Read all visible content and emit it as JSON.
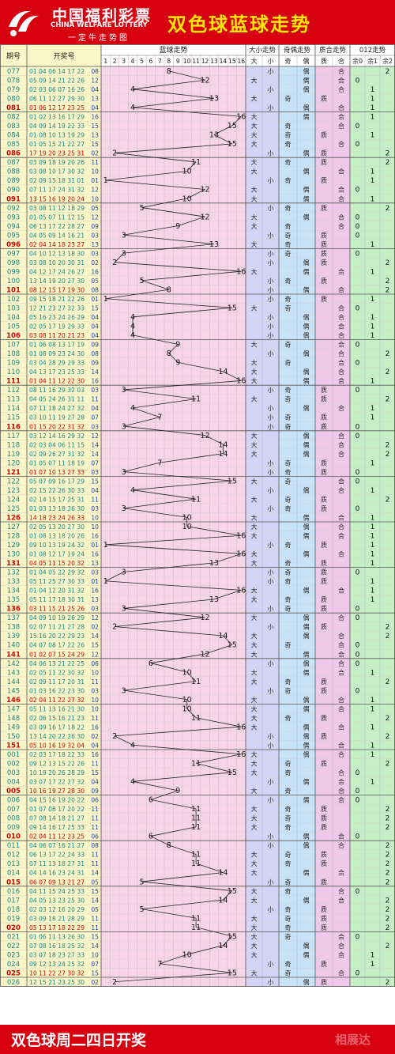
{
  "header": {
    "logo_cn": "中国福利彩票",
    "logo_en": "CHINA WELFARE LOTTERY",
    "logo_sub": "一定牛走势图",
    "title": "双色球蓝球走势"
  },
  "footer": {
    "text": "双色球周二四日开奖",
    "watermark": "相展达"
  },
  "columns": {
    "issue": "期号",
    "numbers": "开奖号",
    "blue": "蓝球走势",
    "size": "大小走势",
    "parity": "奇偶走势",
    "prime": "质合走势",
    "mod": "012走势"
  },
  "sub_labels": {
    "big": "大",
    "small": "小",
    "odd": "奇",
    "even": "偶",
    "prime": "质",
    "composite": "合",
    "r0": "余0",
    "r1": "余1",
    "r2": "余2"
  },
  "colors": {
    "header_red": "#d7000f",
    "title_yellow": "#ffe800",
    "issue_teal": "#0b8a8a",
    "issue_red": "#d40000",
    "trend_pink": "#f6d6e6",
    "size_blue": "#d6d4f4",
    "parity_blue": "#c8e2f8",
    "prime_pink": "#efc8ea",
    "mod_green": "#c6efc6"
  },
  "chart_data": {
    "type": "table",
    "title": "双色球蓝球走势",
    "blue_axis": [
      1,
      2,
      3,
      4,
      5,
      6,
      7,
      8,
      9,
      10,
      11,
      12,
      13,
      14,
      15,
      16
    ],
    "rows": [
      {
        "issue": "077",
        "reds": "01 04 06 14 17 22",
        "blue": 8
      },
      {
        "issue": "078",
        "reds": "05 09 14 21 22 26",
        "blue": 12
      },
      {
        "issue": "079",
        "reds": "02 03 06 07 16 26",
        "blue": 4
      },
      {
        "issue": "080",
        "reds": "06 11 12 27 29 30",
        "blue": 13
      },
      {
        "issue": "081",
        "reds": "01 06 12 17 23 25",
        "blue": 4
      },
      {
        "issue": "082",
        "reds": "01 02 13 16 17 29",
        "blue": 16
      },
      {
        "issue": "083",
        "reds": "04 09 14 19 22 33",
        "blue": 15
      },
      {
        "issue": "084",
        "reds": "01 08 10 13 19 29",
        "blue": 13
      },
      {
        "issue": "085",
        "reds": "01 05 15 21 22 27",
        "blue": 15
      },
      {
        "issue": "086",
        "reds": "17 19 20 23 25 31",
        "blue": 2
      },
      {
        "issue": "087",
        "reds": "03 09 18 19 20 26",
        "blue": 11
      },
      {
        "issue": "088",
        "reds": "03 08 10 17 30 32",
        "blue": 10
      },
      {
        "issue": "089",
        "reds": "02 09 15 18 31 01",
        "blue": 1
      },
      {
        "issue": "090",
        "reds": "07 11 17 24 31 32",
        "blue": 12
      },
      {
        "issue": "091",
        "reds": "13 15 16 19 20 24",
        "blue": 10
      },
      {
        "issue": "092",
        "reds": "03 08 11 12 18 29",
        "blue": 5
      },
      {
        "issue": "093",
        "reds": "01 05 07 11 12 15",
        "blue": 12
      },
      {
        "issue": "094",
        "reds": "06 13 17 22 28 27",
        "blue": 9
      },
      {
        "issue": "095",
        "reds": "04 05 09 14 16 21",
        "blue": 3
      },
      {
        "issue": "096",
        "reds": "02 04 14 18 23 27",
        "blue": 13
      },
      {
        "issue": "097",
        "reds": "04 10 12 13 18 30",
        "blue": 3
      },
      {
        "issue": "098",
        "reds": "03 08 10 20 30 31",
        "blue": 2
      },
      {
        "issue": "099",
        "reds": "04 12 17 24 26 27",
        "blue": 16
      },
      {
        "issue": "100",
        "reds": "13 14 19 20 27 30",
        "blue": 5
      },
      {
        "issue": "101",
        "reds": "08 12 15 17 19 30",
        "blue": 8
      },
      {
        "issue": "102",
        "reds": "09 15 18 21 22 26",
        "blue": 1
      },
      {
        "issue": "103",
        "reds": "12 21 23 27 32 33",
        "blue": 15
      },
      {
        "issue": "104",
        "reds": "05 16 23 24 26 29",
        "blue": 4
      },
      {
        "issue": "105",
        "reds": "02 05 17 19 29 33",
        "blue": 4
      },
      {
        "issue": "106",
        "reds": "03 08 11 20 21 23",
        "blue": 4
      },
      {
        "issue": "107",
        "reds": "01 06 08 13 17 19",
        "blue": 9
      },
      {
        "issue": "108",
        "reds": "01 08 09 23 24 30",
        "blue": 8
      },
      {
        "issue": "109",
        "reds": "03 04 28 29 29 33",
        "blue": 9
      },
      {
        "issue": "110",
        "reds": "04 13 17 23 25 33",
        "blue": 14
      },
      {
        "issue": "111",
        "reds": "01 04 11 12 22 30",
        "blue": 16
      },
      {
        "issue": "112",
        "reds": "08 11 16 29 32 03",
        "blue": 3
      },
      {
        "issue": "113",
        "reds": "04 05 24 26 31 11",
        "blue": 11
      },
      {
        "issue": "114",
        "reds": "07 11 18 24 27 32",
        "blue": 4
      },
      {
        "issue": "115",
        "reds": "03 10 11 19 27 28",
        "blue": 7
      },
      {
        "issue": "116",
        "reds": "01 15 20 22 31 32",
        "blue": 3
      },
      {
        "issue": "117",
        "reds": "03 12 14 16 29 32",
        "blue": 12
      },
      {
        "issue": "118",
        "reds": "02 03 04 06 11 15",
        "blue": 14
      },
      {
        "issue": "119",
        "reds": "02 09 26 27 31 32",
        "blue": 14
      },
      {
        "issue": "120",
        "reds": "01 05 07 11 18 19",
        "blue": 7
      },
      {
        "issue": "121",
        "reds": "01 07 10 13 27 33",
        "blue": 3
      },
      {
        "issue": "122",
        "reds": "05 07 09 16 17 29",
        "blue": 15
      },
      {
        "issue": "123",
        "reds": "02 15 22 26 30 33",
        "blue": 4
      },
      {
        "issue": "124",
        "reds": "02 14 15 17 25 31",
        "blue": 11
      },
      {
        "issue": "125",
        "reds": "01 03 13 18 26 30",
        "blue": 3
      },
      {
        "issue": "126",
        "reds": "14 18 23 24 26 33",
        "blue": 10
      },
      {
        "issue": "127",
        "reds": "02 05 13 20 27 30",
        "blue": 10
      },
      {
        "issue": "128",
        "reds": "01 08 13 18 20 26",
        "blue": 16
      },
      {
        "issue": "129",
        "reds": "09 10 13 19 24 32",
        "blue": 1
      },
      {
        "issue": "130",
        "reds": "01 08 12 17 19 24",
        "blue": 16
      },
      {
        "issue": "131",
        "reds": "04 05 11 15 20 32",
        "blue": 13
      },
      {
        "issue": "132",
        "reds": "01 04 05 22 29 32",
        "blue": 3
      },
      {
        "issue": "133",
        "reds": "05 11 25 27 30 33",
        "blue": 1
      },
      {
        "issue": "134",
        "reds": "01 04 12 20 31 32",
        "blue": 16
      },
      {
        "issue": "135",
        "reds": "05 11 17 18 30 31",
        "blue": 13
      },
      {
        "issue": "136",
        "reds": "03 11 15 21 25 26",
        "blue": 3
      },
      {
        "issue": "137",
        "reds": "04 09 10 19 26 29",
        "blue": 12
      },
      {
        "issue": "138",
        "reds": "02 07 11 21 27 28",
        "blue": 2
      },
      {
        "issue": "139",
        "reds": "15 16 20 22 29 23",
        "blue": 14
      },
      {
        "issue": "140",
        "reds": "04 07 08 17 22 26",
        "blue": 15
      },
      {
        "issue": "141",
        "reds": "01 02 07 15 24 29",
        "blue": 12
      },
      {
        "issue": "142",
        "reds": "04 06 13 21 22 25",
        "blue": 6
      },
      {
        "issue": "143",
        "reds": "02 05 11 22 30 32",
        "blue": 10
      },
      {
        "issue": "144",
        "reds": "02 09 11 17 20 31",
        "blue": 11
      },
      {
        "issue": "145",
        "reds": "01 03 16 22 23 30",
        "blue": 3
      },
      {
        "issue": "146",
        "reds": "02 04 11 22 27 32",
        "blue": 10
      },
      {
        "issue": "147",
        "reds": "05 11 13 16 21 30",
        "blue": 10
      },
      {
        "issue": "148",
        "reds": "02 06 15 16 21 23",
        "blue": 11
      },
      {
        "issue": "149",
        "reds": "03 09 16 17 18 22",
        "blue": 16
      },
      {
        "issue": "150",
        "reds": "13 14 20 22 26 30",
        "blue": 2
      },
      {
        "issue": "151",
        "reds": "05 10 16 19 32 04",
        "blue": 4
      },
      {
        "issue": "001",
        "reds": "02 03 17 18 22 33",
        "blue": 16
      },
      {
        "issue": "002",
        "reds": "09 12 13 15 22 26",
        "blue": 11
      },
      {
        "issue": "003",
        "reds": "10 19 20 26 28 29",
        "blue": 15
      },
      {
        "issue": "004",
        "reds": "03 07 17 22 27 32",
        "blue": 4
      },
      {
        "issue": "005",
        "reds": "10 16 19 27 28 30",
        "blue": 9
      },
      {
        "issue": "006",
        "reds": "04 15 16 19 20 22",
        "blue": 6
      },
      {
        "issue": "007",
        "reds": "01 07 08 17 20 22",
        "blue": 11
      },
      {
        "issue": "008",
        "reds": "07 08 14 18 21 27",
        "blue": 11
      },
      {
        "issue": "009",
        "reds": "09 14 16 17 25 33",
        "blue": 11
      },
      {
        "issue": "010",
        "reds": "02 04 11 12 23 25",
        "blue": 6
      },
      {
        "issue": "011",
        "reds": "04 06 07 16 21 27",
        "blue": 8
      },
      {
        "issue": "012",
        "reds": "06 13 17 22 24 33",
        "blue": 11
      },
      {
        "issue": "013",
        "reds": "07 11 13 18 27 31",
        "blue": 11
      },
      {
        "issue": "014",
        "reds": "04 14 16 23 24 31",
        "blue": 14
      },
      {
        "issue": "015",
        "reds": "06 07 09 13 21 27",
        "blue": 5
      },
      {
        "issue": "016",
        "reds": "04 11 15 24 25 33",
        "blue": 15
      },
      {
        "issue": "017",
        "reds": "04 05 13 23 25 30",
        "blue": 14
      },
      {
        "issue": "018",
        "reds": "02 03 12 16 20 29",
        "blue": 5
      },
      {
        "issue": "019",
        "reds": "03 09 18 21 28 29",
        "blue": 11
      },
      {
        "issue": "020",
        "reds": "05 13 17 18 22 29",
        "blue": 11
      },
      {
        "issue": "021",
        "reds": "01 06 11 13 26 30",
        "blue": 15
      },
      {
        "issue": "022",
        "reds": "07 08 16 18 25 32",
        "blue": 14
      },
      {
        "issue": "023",
        "reds": "03 07 18 23 27 33",
        "blue": 10
      },
      {
        "issue": "024",
        "reds": "09 12 13 24 25 32",
        "blue": 7
      },
      {
        "issue": "025",
        "reds": "10 11 22 27 30 32",
        "blue": 15
      },
      {
        "issue": "026",
        "reds": "12 15 21 23 25 30",
        "blue": 2
      }
    ]
  }
}
